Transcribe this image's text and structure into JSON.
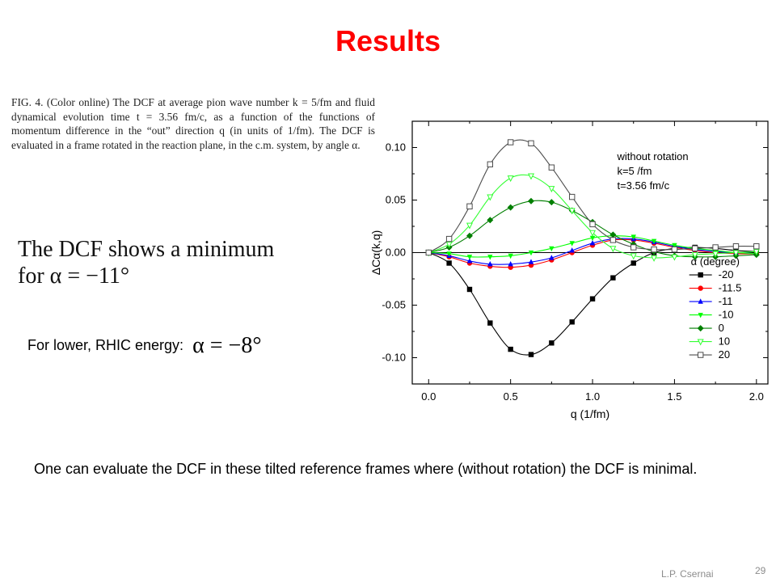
{
  "slide": {
    "title": "Results",
    "caption": "FIG. 4. (Color online) The DCF at average pion wave number k = 5/fm and fluid dynamical evolution time t = 3.56 fm/c, as a function of the functions of momentum difference in the “out” direction q (in units of 1/fm). The DCF is evaluated in a frame rotated in the reaction plane, in the c.m. system, by angle α.",
    "minimum_line1": "The DCF shows a minimum",
    "minimum_line2": "for α = −11°",
    "rhic_label": "For lower, RHIC energy:",
    "rhic_math": "α = −8°",
    "bottom_text": "One can evaluate the DCF in these tilted reference frames where (without rotation) the DCF is minimal.",
    "author": "L.P. Csernai",
    "page_number": "29"
  },
  "chart_data": {
    "type": "line",
    "xlabel": "q (1/fm)",
    "ylabel": "ΔCα(k,q)",
    "xlim": [
      -0.1,
      2.07
    ],
    "ylim": [
      -0.125,
      0.125
    ],
    "xticks": [
      "0.0",
      "0.5",
      "1.0",
      "1.5",
      "2.0"
    ],
    "xtick_values": [
      0,
      0.5,
      1.0,
      1.5,
      2.0
    ],
    "yticks": [
      "0.10",
      "0.05",
      "0.00",
      "-0.05",
      "-0.10"
    ],
    "ytick_values": [
      0.1,
      0.05,
      0.0,
      -0.05,
      -0.1
    ],
    "annotation": [
      "without rotation",
      "k=5 /fm",
      "t=3.56 fm/c"
    ],
    "legend_title": "α (degree)",
    "grid": false,
    "legend_position": "right",
    "x": [
      0,
      0.125,
      0.25,
      0.375,
      0.5,
      0.625,
      0.75,
      0.875,
      1.0,
      1.125,
      1.25,
      1.375,
      1.5,
      1.625,
      1.75,
      1.875,
      2.0
    ],
    "series": [
      {
        "name": "-20",
        "color": "#000000",
        "marker": "square",
        "values": [
          0,
          -0.01,
          -0.035,
          -0.067,
          -0.092,
          -0.097,
          -0.086,
          -0.066,
          -0.044,
          -0.024,
          -0.01,
          0.0,
          0.004,
          0.005,
          0.004,
          0.002,
          0.001
        ]
      },
      {
        "name": "-11.5",
        "color": "#ff0000",
        "marker": "circle",
        "values": [
          0,
          -0.004,
          -0.01,
          -0.013,
          -0.014,
          -0.012,
          -0.007,
          0.0,
          0.007,
          0.012,
          0.012,
          0.009,
          0.005,
          0.002,
          0.0,
          -0.001,
          -0.001
        ]
      },
      {
        "name": "-11",
        "color": "#0000ff",
        "marker": "triangle-up",
        "values": [
          0,
          -0.003,
          -0.008,
          -0.011,
          -0.011,
          -0.009,
          -0.005,
          0.002,
          0.009,
          0.013,
          0.013,
          0.01,
          0.006,
          0.003,
          0.001,
          0.0,
          -0.001
        ]
      },
      {
        "name": "-10",
        "color": "#00ff00",
        "marker": "triangle-down",
        "values": [
          0,
          -0.001,
          -0.004,
          -0.004,
          -0.003,
          0.0,
          0.004,
          0.009,
          0.014,
          0.016,
          0.015,
          0.011,
          0.007,
          0.004,
          0.002,
          0.0,
          -0.001
        ]
      },
      {
        "name": "0",
        "color": "#007f00",
        "marker": "diamond",
        "values": [
          0,
          0.005,
          0.016,
          0.031,
          0.043,
          0.049,
          0.048,
          0.04,
          0.029,
          0.017,
          0.008,
          0.001,
          -0.003,
          -0.004,
          -0.004,
          -0.003,
          -0.002
        ]
      },
      {
        "name": "10",
        "color": "#33ff33",
        "marker": "triangle-down-open",
        "values": [
          0,
          0.008,
          0.026,
          0.053,
          0.071,
          0.073,
          0.061,
          0.04,
          0.019,
          0.004,
          -0.003,
          -0.005,
          -0.004,
          -0.002,
          -0.001,
          0.0,
          0.001
        ]
      },
      {
        "name": "20",
        "color": "#4d4d4d",
        "marker": "square-open",
        "values": [
          0,
          0.013,
          0.044,
          0.084,
          0.105,
          0.104,
          0.081,
          0.053,
          0.027,
          0.012,
          0.005,
          0.003,
          0.003,
          0.004,
          0.005,
          0.006,
          0.006
        ]
      }
    ]
  }
}
